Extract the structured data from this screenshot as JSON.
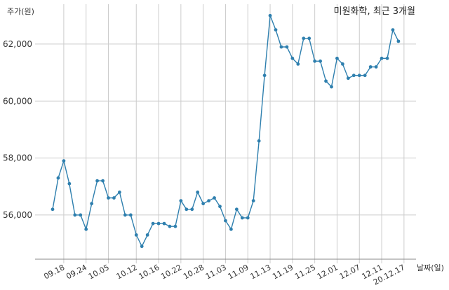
{
  "chart_data": {
    "type": "line",
    "title": "미원화학, 최근 3개월",
    "ylabel": "주가(원)",
    "xlabel": "날짜(일)",
    "ylim": [
      54400,
      63400
    ],
    "yticks": [
      56000,
      58000,
      60000,
      62000
    ],
    "ytick_labels": [
      "56,000",
      "58,000",
      "60,000",
      "62,000"
    ],
    "xtick_labels": [
      "09.18",
      "09.24",
      "10.05",
      "10.12",
      "10.16",
      "10.22",
      "10.28",
      "11.03",
      "11.09",
      "11.13",
      "11.19",
      "11.25",
      "12.01",
      "12.07",
      "12.11",
      "20.12.17"
    ],
    "xtick_positions": [
      2,
      6,
      10,
      15,
      19,
      23,
      27,
      31,
      35,
      39,
      43,
      47,
      51,
      55,
      59,
      63
    ],
    "grid": "vertical-at-ticks, horizontal-at-yticks",
    "colors": {
      "line": "#2e7fae",
      "grid": "#cccccc"
    },
    "series": [
      {
        "values": [
          56200,
          57300,
          57900,
          57100,
          56000,
          56000,
          55500,
          56400,
          57200,
          57200,
          56600,
          56600,
          56800,
          56000,
          56000,
          55300,
          54900,
          55300,
          55700,
          55700,
          55700,
          55600,
          55600,
          56500,
          56200,
          56200,
          56800,
          56400,
          56500,
          56600,
          56300,
          55800,
          55500,
          56200,
          55900,
          55900,
          56500,
          58600,
          60900,
          63000,
          62500,
          61900,
          61900,
          61500,
          61300,
          62200,
          62200,
          61400,
          61400,
          60700,
          60500,
          61500,
          61300,
          60800,
          60900,
          60900,
          60900,
          61200,
          61200,
          61500,
          61500,
          62500,
          62100
        ]
      }
    ]
  }
}
